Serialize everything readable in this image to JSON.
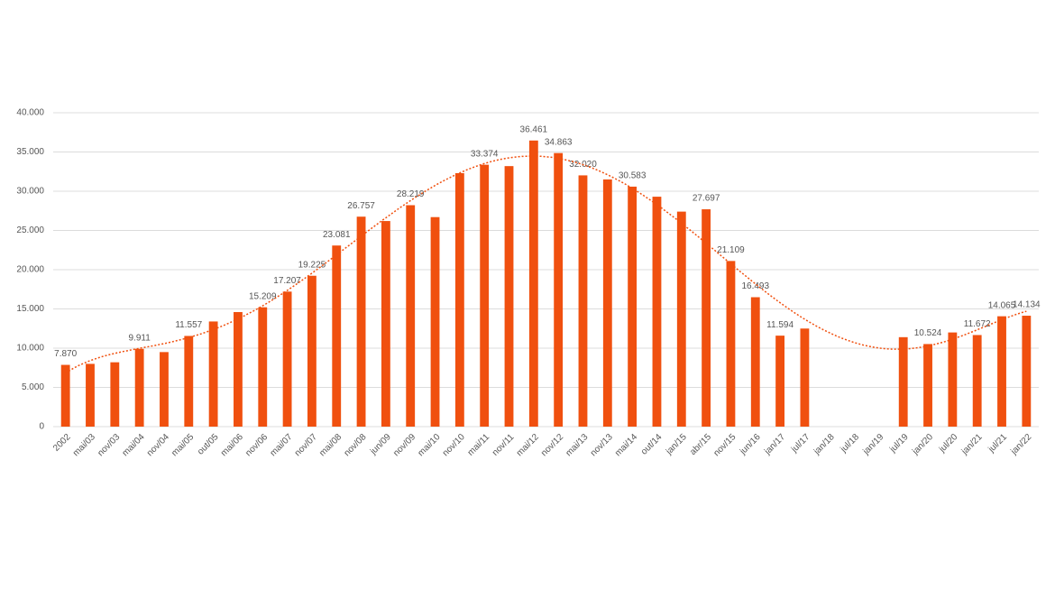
{
  "chart_data": {
    "type": "bar",
    "categories": [
      "2002",
      "mai/03",
      "nov/03",
      "mai/04",
      "nov/04",
      "mai/05",
      "out/05",
      "mai/06",
      "nov/06",
      "mai/07",
      "nov/07",
      "mai/08",
      "nov/08",
      "jun/09",
      "nov/09",
      "mai/10",
      "nov/10",
      "mai/11",
      "nov/11",
      "mai/12",
      "nov/12",
      "mai/13",
      "nov/13",
      "mai/14",
      "out/14",
      "jan/15",
      "abr/15",
      "nov/15",
      "jun/16",
      "jan/17",
      "jul/17",
      "jan/18",
      "jul/18",
      "jan/19",
      "jul/19",
      "jan/20",
      "jul/20",
      "jan/21",
      "jul/21",
      "jan/22"
    ],
    "values": [
      7870,
      8000,
      8200,
      9911,
      9500,
      11557,
      13400,
      14600,
      15209,
      17207,
      19225,
      23081,
      26757,
      26200,
      28219,
      26700,
      32300,
      33374,
      33200,
      36461,
      34863,
      32020,
      31500,
      30583,
      29300,
      27400,
      27697,
      21109,
      16493,
      11594,
      12500,
      null,
      null,
      null,
      11400,
      10524,
      12000,
      11672,
      14065,
      14134
    ],
    "value_labels": [
      "7.870",
      null,
      null,
      "9.911",
      null,
      "11.557",
      null,
      null,
      "15.209",
      "17.207",
      "19.225",
      "23.081",
      "26.757",
      null,
      "28.219",
      null,
      null,
      "33.374",
      null,
      "36.461",
      "34.863",
      "32.020",
      null,
      "30.583",
      null,
      null,
      "27.697",
      "21.109",
      "16.493",
      "11.594",
      null,
      null,
      null,
      null,
      null,
      "10.524",
      null,
      "11.672",
      "14.065",
      "14.134"
    ],
    "color": "#f0500f",
    "trendline": true,
    "ylim": [
      0,
      40000
    ],
    "yticks": [
      0,
      {
        "value": 5000,
        "label": "5.000"
      },
      {
        "value": 10000,
        "label": "10.000"
      },
      {
        "value": 15000,
        "label": "15.000"
      },
      {
        "value": 20000,
        "label": "20.000"
      },
      {
        "value": 25000,
        "label": "25.000"
      },
      {
        "value": 30000,
        "label": "30.000"
      },
      {
        "value": 35000,
        "label": "35.000"
      },
      {
        "value": 40000,
        "label": "40.000"
      }
    ],
    "grid": true
  }
}
